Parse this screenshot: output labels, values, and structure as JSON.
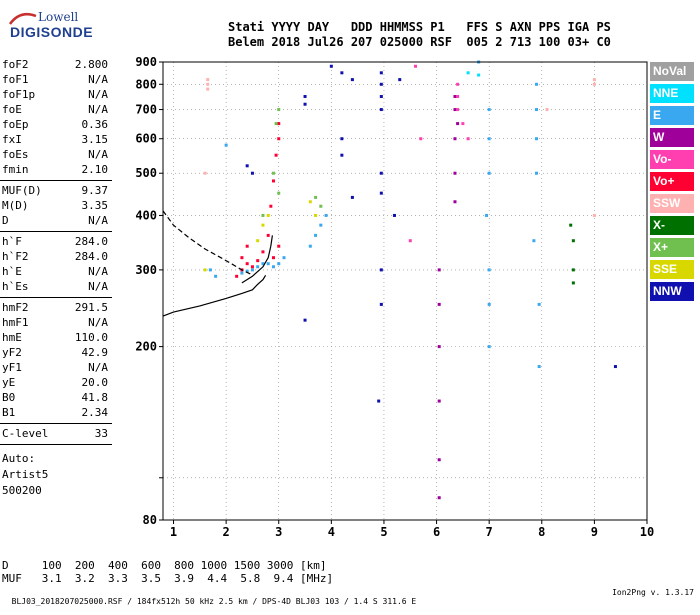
{
  "logo": {
    "line1": "Lowell",
    "line2": "DIGISONDE"
  },
  "header": {
    "line1": "Stati YYYY DAY   DDD HHMMSS P1   FFS S AXN PPS IGA PS",
    "line2": "Belem 2018 Jul26 207 025000 RSF  005 2 713 100 03+ C0"
  },
  "params": [
    {
      "k": "foF2",
      "v": "2.800"
    },
    {
      "k": "foF1",
      "v": "N/A"
    },
    {
      "k": "foF1p",
      "v": "N/A"
    },
    {
      "k": "foE",
      "v": "N/A"
    },
    {
      "k": "foEp",
      "v": "0.36"
    },
    {
      "k": "fxI",
      "v": "3.15"
    },
    {
      "k": "foEs",
      "v": "N/A"
    },
    {
      "k": "fmin",
      "v": "2.10"
    },
    {
      "k": "MUF(D)",
      "v": "9.37"
    },
    {
      "k": "M(D)",
      "v": "3.35"
    },
    {
      "k": "D",
      "v": "N/A"
    },
    {
      "k": "h`F",
      "v": "284.0"
    },
    {
      "k": "h`F2",
      "v": "284.0"
    },
    {
      "k": "h`E",
      "v": "N/A"
    },
    {
      "k": "h`Es",
      "v": "N/A"
    },
    {
      "k": "hmF2",
      "v": "291.5"
    },
    {
      "k": "hmF1",
      "v": "N/A"
    },
    {
      "k": "hmE",
      "v": "110.0"
    },
    {
      "k": "yF2",
      "v": "42.9"
    },
    {
      "k": "yF1",
      "v": "N/A"
    },
    {
      "k": "yE",
      "v": "20.0"
    },
    {
      "k": "B0",
      "v": "41.8"
    },
    {
      "k": "B1",
      "v": "2.34"
    },
    {
      "k": "C-level",
      "v": "33"
    }
  ],
  "auto": [
    "Auto:",
    "Artist5",
    "500200"
  ],
  "legend": [
    {
      "label": "NoVal",
      "color": "#a0a0a0"
    },
    {
      "label": "NNE",
      "color": "#00e0ff"
    },
    {
      "label": "E",
      "color": "#3aa8f0"
    },
    {
      "label": "W",
      "color": "#a0009a"
    },
    {
      "label": "Vo-",
      "color": "#ff3fb0"
    },
    {
      "label": "Vo+",
      "color": "#ff0033"
    },
    {
      "label": "SSW",
      "color": "#ffb0b0"
    },
    {
      "label": "X-",
      "color": "#007000"
    },
    {
      "label": "X+",
      "color": "#70c050"
    },
    {
      "label": "SSE",
      "color": "#d8d800"
    },
    {
      "label": "NNW",
      "color": "#1010b0"
    }
  ],
  "dtable": {
    "line1": "D     100  200  400  600  800 1000 1500 3000 [km]",
    "line2": "MUF   3.1  3.2  3.3  3.5  3.9  4.4  5.8  9.4 [MHz]"
  },
  "footer": {
    "left": "BLJ03_2018207025000.RSF / 184fx512h 50 kHz 2.5 km / DPS-4D BLJ03 103 / 1.4 S 311.6 E",
    "right": "Ion2Png v. 1.3.17"
  },
  "chart_data": {
    "type": "scatter",
    "title": "",
    "xlabel": "",
    "ylabel": "",
    "xlim": [
      0.8,
      10
    ],
    "ylim": [
      80,
      900
    ],
    "x_ticks": [
      1,
      2,
      3,
      4,
      5,
      6,
      7,
      8,
      9,
      10
    ],
    "y_ticks": [
      80,
      100,
      200,
      300,
      400,
      500,
      600,
      700,
      800,
      900
    ],
    "y_tick_labels": [
      "80",
      "",
      "200",
      "300",
      "400",
      "500",
      "600",
      "700",
      "800",
      "900"
    ],
    "y_scale": "log",
    "grid": "dotted",
    "legend_position": "right",
    "series": [
      {
        "color": "#ff0033",
        "points": [
          [
            2.2,
            290
          ],
          [
            2.3,
            300
          ],
          [
            2.4,
            310
          ],
          [
            2.5,
            305
          ],
          [
            2.6,
            315
          ],
          [
            2.7,
            330
          ],
          [
            2.8,
            360
          ],
          [
            2.85,
            420
          ],
          [
            2.9,
            480
          ],
          [
            2.95,
            550
          ],
          [
            3.0,
            600
          ],
          [
            3.0,
            650
          ],
          [
            2.9,
            320
          ],
          [
            3.0,
            340
          ],
          [
            2.3,
            320
          ],
          [
            2.4,
            340
          ]
        ]
      },
      {
        "color": "#3aa8f0",
        "points": [
          [
            2.3,
            295
          ],
          [
            2.4,
            298
          ],
          [
            2.5,
            300
          ],
          [
            2.6,
            305
          ],
          [
            2.7,
            310
          ],
          [
            2.8,
            310
          ],
          [
            2.9,
            305
          ],
          [
            3.0,
            310
          ],
          [
            3.1,
            320
          ],
          [
            3.6,
            340
          ],
          [
            3.7,
            360
          ],
          [
            3.8,
            380
          ],
          [
            3.9,
            400
          ],
          [
            6.95,
            400
          ],
          [
            7.0,
            500
          ],
          [
            7.0,
            600
          ],
          [
            7.0,
            700
          ],
          [
            7.0,
            300
          ],
          [
            7.0,
            250
          ],
          [
            7.0,
            200
          ],
          [
            7.85,
            350
          ],
          [
            7.9,
            500
          ],
          [
            7.9,
            600
          ],
          [
            7.9,
            700
          ],
          [
            7.9,
            800
          ],
          [
            7.95,
            250
          ],
          [
            7.95,
            180
          ],
          [
            6.8,
            900
          ],
          [
            2.0,
            580
          ],
          [
            1.7,
            300
          ],
          [
            1.8,
            290
          ]
        ]
      },
      {
        "color": "#a0009a",
        "points": [
          [
            6.05,
            300
          ],
          [
            6.05,
            250
          ],
          [
            6.05,
            200
          ],
          [
            6.05,
            150
          ],
          [
            6.05,
            110
          ],
          [
            6.05,
            90
          ],
          [
            6.35,
            700
          ],
          [
            6.35,
            750
          ],
          [
            6.35,
            600
          ],
          [
            6.35,
            500
          ],
          [
            6.35,
            430
          ],
          [
            6.4,
            650
          ]
        ]
      },
      {
        "color": "#70c050",
        "points": [
          [
            2.9,
            500
          ],
          [
            2.95,
            650
          ],
          [
            3.0,
            700
          ],
          [
            2.7,
            400
          ],
          [
            3.7,
            440
          ],
          [
            3.8,
            420
          ],
          [
            3.0,
            450
          ]
        ]
      },
      {
        "color": "#007000",
        "points": [
          [
            8.6,
            350
          ],
          [
            8.6,
            300
          ],
          [
            8.6,
            280
          ],
          [
            8.55,
            380
          ]
        ]
      },
      {
        "color": "#1010b0",
        "points": [
          [
            4.95,
            850
          ],
          [
            4.95,
            800
          ],
          [
            4.95,
            750
          ],
          [
            4.95,
            700
          ],
          [
            4.95,
            500
          ],
          [
            4.95,
            450
          ],
          [
            4.95,
            300
          ],
          [
            4.95,
            250
          ],
          [
            4.9,
            150
          ],
          [
            5.3,
            820
          ],
          [
            4.2,
            850
          ],
          [
            4.4,
            820
          ],
          [
            3.5,
            750
          ],
          [
            3.5,
            720
          ],
          [
            2.4,
            520
          ],
          [
            2.5,
            500
          ],
          [
            3.5,
            230
          ],
          [
            4.0,
            880
          ],
          [
            4.2,
            600
          ],
          [
            4.2,
            550
          ],
          [
            4.4,
            440
          ],
          [
            5.2,
            400
          ],
          [
            9.4,
            180
          ]
        ]
      },
      {
        "color": "#ff3fb0",
        "points": [
          [
            6.4,
            800
          ],
          [
            6.4,
            750
          ],
          [
            6.4,
            700
          ],
          [
            6.5,
            650
          ],
          [
            6.6,
            600
          ],
          [
            5.5,
            350
          ],
          [
            5.7,
            600
          ],
          [
            5.6,
            880
          ]
        ]
      },
      {
        "color": "#ffb0b0",
        "points": [
          [
            1.65,
            800
          ],
          [
            1.65,
            780
          ],
          [
            1.65,
            820
          ],
          [
            8.1,
            700
          ],
          [
            9.0,
            800
          ],
          [
            9.0,
            820
          ],
          [
            9.0,
            400
          ],
          [
            1.6,
            500
          ]
        ]
      },
      {
        "color": "#d8d800",
        "points": [
          [
            2.6,
            350
          ],
          [
            2.7,
            380
          ],
          [
            2.8,
            400
          ],
          [
            3.6,
            430
          ],
          [
            3.7,
            400
          ],
          [
            1.6,
            300
          ]
        ]
      },
      {
        "color": "#00e0ff",
        "points": [
          [
            6.8,
            840
          ],
          [
            6.6,
            850
          ]
        ]
      }
    ],
    "curves": [
      {
        "style": "solid",
        "points": [
          [
            0.8,
            235
          ],
          [
            1.0,
            240
          ],
          [
            1.5,
            248
          ],
          [
            2.0,
            258
          ],
          [
            2.3,
            265
          ],
          [
            2.5,
            270
          ],
          [
            2.6,
            278
          ],
          [
            2.7,
            285
          ],
          [
            2.75,
            291.5
          ]
        ]
      },
      {
        "style": "dashed",
        "points": [
          [
            0.8,
            410
          ],
          [
            1.0,
            380
          ],
          [
            1.3,
            355
          ],
          [
            1.6,
            335
          ],
          [
            1.9,
            320
          ],
          [
            2.1,
            310
          ],
          [
            2.3,
            300
          ],
          [
            2.5,
            292
          ]
        ]
      },
      {
        "style": "solid",
        "points": [
          [
            2.3,
            280
          ],
          [
            2.5,
            290
          ],
          [
            2.7,
            305
          ],
          [
            2.8,
            320
          ],
          [
            2.85,
            340
          ],
          [
            2.88,
            360
          ]
        ]
      }
    ]
  }
}
